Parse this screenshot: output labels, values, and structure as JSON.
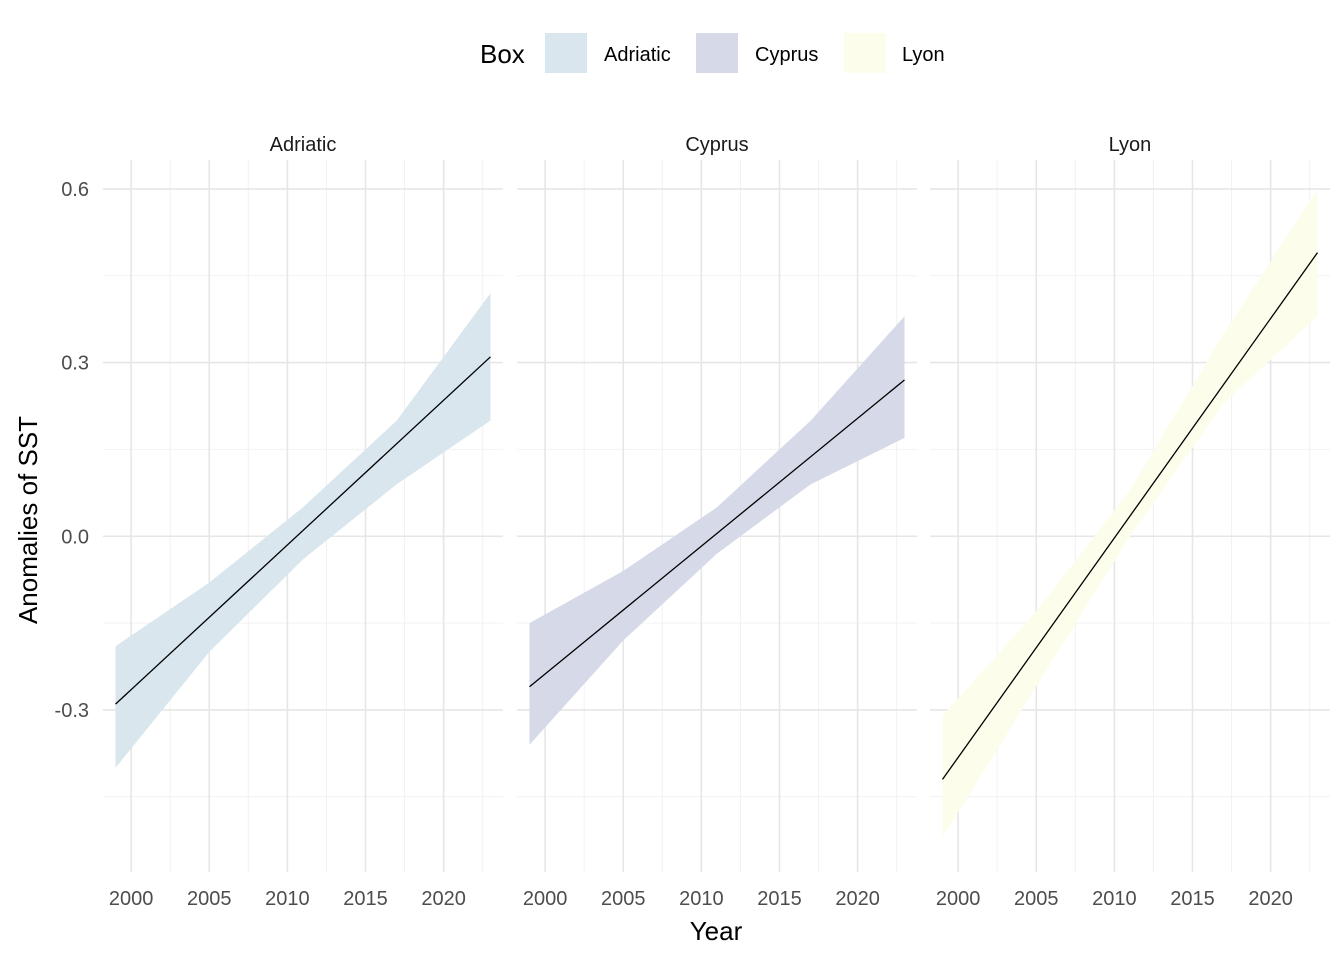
{
  "chart_data": {
    "type": "line",
    "facet_by": "Box",
    "xlabel": "Year",
    "ylabel": "Anomalies of SST",
    "xlim": [
      1998.2,
      2023.8
    ],
    "ylim": [
      -0.58,
      0.65
    ],
    "x_ticks": [
      2000,
      2005,
      2010,
      2015,
      2020
    ],
    "x_tick_labels": [
      "2000",
      "2005",
      "2010",
      "2015",
      "2020"
    ],
    "y_ticks": [
      -0.3,
      0.0,
      0.3,
      0.6
    ],
    "y_tick_labels": [
      "-0.3",
      "0.0",
      "0.3",
      "0.6"
    ],
    "grid": true,
    "legend": {
      "title": "Box",
      "placement": "top",
      "entries": [
        {
          "label": "Adriatic",
          "color": "#D9E6EE"
        },
        {
          "label": "Cyprus",
          "color": "#D5D9E8"
        },
        {
          "label": "Lyon",
          "color": "#FCFDEB"
        }
      ]
    },
    "series": [
      {
        "name": "Adriatic",
        "panel_title": "Adriatic",
        "fill": "#D9E6EE",
        "x": [
          1999,
          2023
        ],
        "fit": [
          -0.29,
          0.31
        ],
        "ci_x": [
          1999,
          2005,
          2011,
          2017,
          2023
        ],
        "ci_lower": [
          -0.4,
          -0.2,
          -0.04,
          0.09,
          0.2
        ],
        "ci_upper": [
          -0.19,
          -0.08,
          0.05,
          0.2,
          0.42
        ]
      },
      {
        "name": "Cyprus",
        "panel_title": "Cyprus",
        "fill": "#D5D9E8",
        "x": [
          1999,
          2023
        ],
        "fit": [
          -0.26,
          0.27
        ],
        "ci_x": [
          1999,
          2005,
          2011,
          2017,
          2023
        ],
        "ci_lower": [
          -0.36,
          -0.18,
          -0.03,
          0.09,
          0.17
        ],
        "ci_upper": [
          -0.15,
          -0.06,
          0.05,
          0.2,
          0.38
        ]
      },
      {
        "name": "Lyon",
        "panel_title": "Lyon",
        "fill": "#FCFDEB",
        "x": [
          1999,
          2023
        ],
        "fit": [
          -0.42,
          0.49
        ],
        "ci_x": [
          1999,
          2005,
          2011,
          2017,
          2023
        ],
        "ci_lower": [
          -0.52,
          -0.26,
          0.0,
          0.23,
          0.38
        ],
        "ci_upper": [
          -0.31,
          -0.13,
          0.08,
          0.35,
          0.6
        ]
      }
    ]
  }
}
